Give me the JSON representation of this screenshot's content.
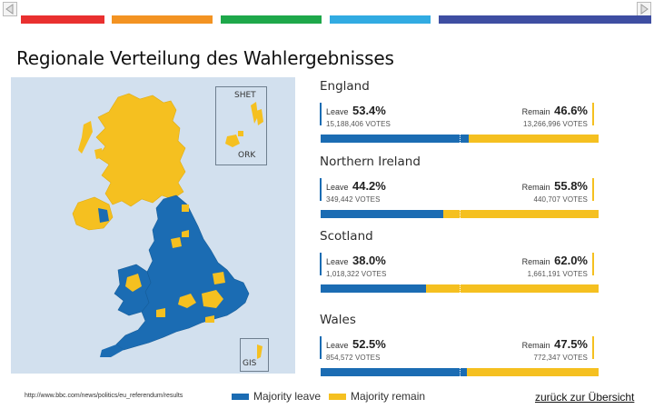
{
  "navigation": {
    "prev_icon": "triangle-left-icon",
    "next_icon": "triangle-right-icon"
  },
  "header": {
    "color_bars": [
      "#e9302f",
      "#f39322",
      "#1ea84a",
      "#31abe2",
      "#3e4ea2"
    ]
  },
  "slide": {
    "title": "Regionale Verteilung des Wahlergebnisses"
  },
  "map": {
    "insets": {
      "shetland": "SHET",
      "orkney": "ORK",
      "guernsey": "GIS"
    }
  },
  "results": {
    "leave_label": "Leave",
    "remain_label": "Remain",
    "leave_color": "#1b6cb3",
    "remain_color": "#f5c020",
    "regions": [
      {
        "name": "England",
        "leave_pct": "53.4%",
        "leave_votes": "15,188,406 VOTES",
        "remain_pct": "46.6%",
        "remain_votes": "13,266,996 VOTES",
        "leave_share": 53.4
      },
      {
        "name": "Northern Ireland",
        "leave_pct": "44.2%",
        "leave_votes": "349,442 VOTES",
        "remain_pct": "55.8%",
        "remain_votes": "440,707 VOTES",
        "leave_share": 44.2
      },
      {
        "name": "Scotland",
        "leave_pct": "38.0%",
        "leave_votes": "1,018,322 VOTES",
        "remain_pct": "62.0%",
        "remain_votes": "1,661,191 VOTES",
        "leave_share": 38.0
      },
      {
        "name": "Wales",
        "leave_pct": "52.5%",
        "leave_votes": "854,572 VOTES",
        "remain_pct": "47.5%",
        "remain_votes": "772,347 VOTES",
        "leave_share": 52.5
      }
    ]
  },
  "legend": {
    "leave": "Majority leave",
    "remain": "Majority remain"
  },
  "footer": {
    "source_url": "http://www.bbc.com/news/politics/eu_referendum/results",
    "back_link": "zurück zur Übersicht"
  }
}
